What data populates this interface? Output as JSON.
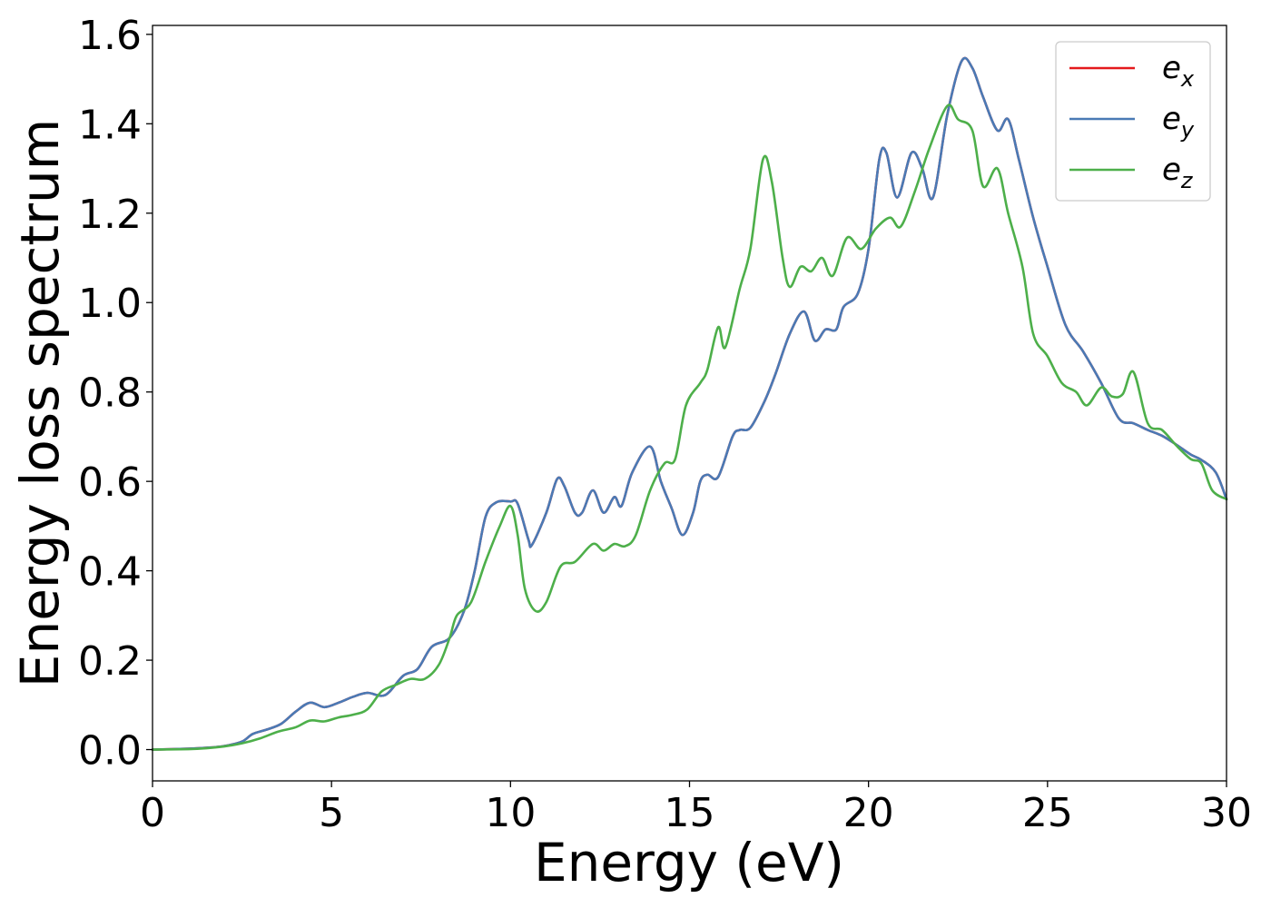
{
  "chart_data": {
    "type": "line",
    "title": "",
    "xlabel": "Energy (eV)",
    "ylabel": "Energy loss spectrum",
    "xlim": [
      0,
      30
    ],
    "ylim": [
      -0.07,
      1.62
    ],
    "x_ticks": [
      0,
      5,
      10,
      15,
      20,
      25,
      30
    ],
    "y_ticks": [
      0.0,
      0.2,
      0.4,
      0.6,
      0.8,
      1.0,
      1.2,
      1.4,
      1.6
    ],
    "x_tick_labels": [
      "0",
      "5",
      "10",
      "15",
      "20",
      "25",
      "30"
    ],
    "y_tick_labels": [
      "0.0",
      "0.2",
      "0.4",
      "0.6",
      "0.8",
      "1.0",
      "1.2",
      "1.4",
      "1.6"
    ],
    "grid": false,
    "legend_position": "top-right",
    "series": [
      {
        "name": "e_x",
        "base": "e",
        "sub": "x",
        "color": "#e41a1c",
        "points": [
          [
            0,
            0
          ],
          [
            1,
            0.002
          ],
          [
            1.5,
            0.004
          ],
          [
            2,
            0.008
          ],
          [
            2.5,
            0.018
          ],
          [
            2.8,
            0.035
          ],
          [
            3.2,
            0.045
          ],
          [
            3.6,
            0.058
          ],
          [
            4,
            0.085
          ],
          [
            4.4,
            0.105
          ],
          [
            4.8,
            0.095
          ],
          [
            5.2,
            0.105
          ],
          [
            5.6,
            0.118
          ],
          [
            6,
            0.127
          ],
          [
            6.5,
            0.122
          ],
          [
            7,
            0.165
          ],
          [
            7.4,
            0.18
          ],
          [
            7.8,
            0.23
          ],
          [
            8.3,
            0.25
          ],
          [
            8.7,
            0.31
          ],
          [
            9,
            0.4
          ],
          [
            9.3,
            0.52
          ],
          [
            9.6,
            0.553
          ],
          [
            10,
            0.555
          ],
          [
            10.2,
            0.55
          ],
          [
            10.5,
            0.47
          ],
          [
            10.6,
            0.458
          ],
          [
            11,
            0.53
          ],
          [
            11.3,
            0.605
          ],
          [
            11.5,
            0.59
          ],
          [
            11.8,
            0.53
          ],
          [
            12,
            0.53
          ],
          [
            12.3,
            0.58
          ],
          [
            12.6,
            0.53
          ],
          [
            12.9,
            0.565
          ],
          [
            13.1,
            0.545
          ],
          [
            13.4,
            0.62
          ],
          [
            13.9,
            0.678
          ],
          [
            14.2,
            0.6
          ],
          [
            14.5,
            0.54
          ],
          [
            14.8,
            0.48
          ],
          [
            15.1,
            0.53
          ],
          [
            15.3,
            0.6
          ],
          [
            15.5,
            0.615
          ],
          [
            15.8,
            0.61
          ],
          [
            16.2,
            0.7
          ],
          [
            16.4,
            0.715
          ],
          [
            16.7,
            0.72
          ],
          [
            17.1,
            0.78
          ],
          [
            17.4,
            0.84
          ],
          [
            17.8,
            0.93
          ],
          [
            18.2,
            0.98
          ],
          [
            18.5,
            0.915
          ],
          [
            18.8,
            0.94
          ],
          [
            19.1,
            0.94
          ],
          [
            19.3,
            0.99
          ],
          [
            19.7,
            1.02
          ],
          [
            20,
            1.12
          ],
          [
            20.3,
            1.32
          ],
          [
            20.5,
            1.335
          ],
          [
            20.8,
            1.235
          ],
          [
            21.2,
            1.335
          ],
          [
            21.5,
            1.3
          ],
          [
            21.8,
            1.235
          ],
          [
            22.2,
            1.42
          ],
          [
            22.6,
            1.54
          ],
          [
            22.9,
            1.525
          ],
          [
            23.2,
            1.46
          ],
          [
            23.6,
            1.385
          ],
          [
            23.9,
            1.41
          ],
          [
            24.2,
            1.32
          ],
          [
            24.6,
            1.19
          ],
          [
            25,
            1.08
          ],
          [
            25.5,
            0.95
          ],
          [
            26,
            0.89
          ],
          [
            26.5,
            0.82
          ],
          [
            27,
            0.74
          ],
          [
            27.4,
            0.73
          ],
          [
            27.8,
            0.715
          ],
          [
            28.2,
            0.702
          ],
          [
            28.6,
            0.682
          ],
          [
            29,
            0.66
          ],
          [
            29.3,
            0.648
          ],
          [
            29.7,
            0.62
          ],
          [
            30,
            0.56
          ]
        ]
      },
      {
        "name": "e_y",
        "base": "e",
        "sub": "y",
        "color": "#4a7ab5",
        "points": [
          [
            0,
            0
          ],
          [
            1,
            0.002
          ],
          [
            1.5,
            0.004
          ],
          [
            2,
            0.008
          ],
          [
            2.5,
            0.018
          ],
          [
            2.8,
            0.035
          ],
          [
            3.2,
            0.045
          ],
          [
            3.6,
            0.058
          ],
          [
            4,
            0.085
          ],
          [
            4.4,
            0.105
          ],
          [
            4.8,
            0.095
          ],
          [
            5.2,
            0.105
          ],
          [
            5.6,
            0.118
          ],
          [
            6,
            0.127
          ],
          [
            6.5,
            0.122
          ],
          [
            7,
            0.165
          ],
          [
            7.4,
            0.18
          ],
          [
            7.8,
            0.23
          ],
          [
            8.3,
            0.25
          ],
          [
            8.7,
            0.31
          ],
          [
            9,
            0.4
          ],
          [
            9.3,
            0.52
          ],
          [
            9.6,
            0.553
          ],
          [
            10,
            0.555
          ],
          [
            10.2,
            0.55
          ],
          [
            10.5,
            0.47
          ],
          [
            10.6,
            0.458
          ],
          [
            11,
            0.53
          ],
          [
            11.3,
            0.605
          ],
          [
            11.5,
            0.59
          ],
          [
            11.8,
            0.53
          ],
          [
            12,
            0.53
          ],
          [
            12.3,
            0.58
          ],
          [
            12.6,
            0.53
          ],
          [
            12.9,
            0.565
          ],
          [
            13.1,
            0.545
          ],
          [
            13.4,
            0.62
          ],
          [
            13.9,
            0.678
          ],
          [
            14.2,
            0.6
          ],
          [
            14.5,
            0.54
          ],
          [
            14.8,
            0.48
          ],
          [
            15.1,
            0.53
          ],
          [
            15.3,
            0.6
          ],
          [
            15.5,
            0.615
          ],
          [
            15.8,
            0.61
          ],
          [
            16.2,
            0.7
          ],
          [
            16.4,
            0.715
          ],
          [
            16.7,
            0.72
          ],
          [
            17.1,
            0.78
          ],
          [
            17.4,
            0.84
          ],
          [
            17.8,
            0.93
          ],
          [
            18.2,
            0.98
          ],
          [
            18.5,
            0.915
          ],
          [
            18.8,
            0.94
          ],
          [
            19.1,
            0.94
          ],
          [
            19.3,
            0.99
          ],
          [
            19.7,
            1.02
          ],
          [
            20,
            1.12
          ],
          [
            20.3,
            1.32
          ],
          [
            20.5,
            1.335
          ],
          [
            20.8,
            1.235
          ],
          [
            21.2,
            1.335
          ],
          [
            21.5,
            1.3
          ],
          [
            21.8,
            1.235
          ],
          [
            22.2,
            1.42
          ],
          [
            22.6,
            1.54
          ],
          [
            22.9,
            1.525
          ],
          [
            23.2,
            1.46
          ],
          [
            23.6,
            1.385
          ],
          [
            23.9,
            1.41
          ],
          [
            24.2,
            1.32
          ],
          [
            24.6,
            1.19
          ],
          [
            25,
            1.08
          ],
          [
            25.5,
            0.95
          ],
          [
            26,
            0.89
          ],
          [
            26.5,
            0.82
          ],
          [
            27,
            0.74
          ],
          [
            27.4,
            0.73
          ],
          [
            27.8,
            0.715
          ],
          [
            28.2,
            0.702
          ],
          [
            28.6,
            0.682
          ],
          [
            29,
            0.66
          ],
          [
            29.3,
            0.648
          ],
          [
            29.7,
            0.62
          ],
          [
            30,
            0.56
          ]
        ]
      },
      {
        "name": "e_z",
        "base": "e",
        "sub": "z",
        "color": "#4daf4a",
        "points": [
          [
            0,
            0
          ],
          [
            1,
            0.001
          ],
          [
            1.5,
            0.003
          ],
          [
            2,
            0.007
          ],
          [
            2.5,
            0.014
          ],
          [
            3,
            0.025
          ],
          [
            3.5,
            0.04
          ],
          [
            4,
            0.05
          ],
          [
            4.4,
            0.065
          ],
          [
            4.8,
            0.063
          ],
          [
            5.2,
            0.072
          ],
          [
            5.6,
            0.078
          ],
          [
            6,
            0.09
          ],
          [
            6.4,
            0.13
          ],
          [
            6.8,
            0.145
          ],
          [
            7.2,
            0.158
          ],
          [
            7.6,
            0.158
          ],
          [
            8,
            0.19
          ],
          [
            8.3,
            0.25
          ],
          [
            8.5,
            0.3
          ],
          [
            8.9,
            0.33
          ],
          [
            9.3,
            0.42
          ],
          [
            9.7,
            0.5
          ],
          [
            10,
            0.545
          ],
          [
            10.2,
            0.48
          ],
          [
            10.4,
            0.36
          ],
          [
            10.7,
            0.31
          ],
          [
            11,
            0.33
          ],
          [
            11.4,
            0.41
          ],
          [
            11.8,
            0.42
          ],
          [
            12.3,
            0.46
          ],
          [
            12.6,
            0.445
          ],
          [
            12.9,
            0.46
          ],
          [
            13.2,
            0.455
          ],
          [
            13.5,
            0.48
          ],
          [
            13.9,
            0.58
          ],
          [
            14.3,
            0.64
          ],
          [
            14.6,
            0.65
          ],
          [
            14.9,
            0.77
          ],
          [
            15.3,
            0.82
          ],
          [
            15.5,
            0.85
          ],
          [
            15.8,
            0.945
          ],
          [
            16,
            0.9
          ],
          [
            16.4,
            1.03
          ],
          [
            16.7,
            1.12
          ],
          [
            17.05,
            1.32
          ],
          [
            17.3,
            1.27
          ],
          [
            17.6,
            1.1
          ],
          [
            17.8,
            1.035
          ],
          [
            18.1,
            1.08
          ],
          [
            18.4,
            1.07
          ],
          [
            18.7,
            1.1
          ],
          [
            19,
            1.06
          ],
          [
            19.4,
            1.145
          ],
          [
            19.8,
            1.12
          ],
          [
            20.2,
            1.165
          ],
          [
            20.6,
            1.19
          ],
          [
            20.9,
            1.17
          ],
          [
            21.3,
            1.25
          ],
          [
            21.7,
            1.345
          ],
          [
            22.2,
            1.44
          ],
          [
            22.5,
            1.41
          ],
          [
            22.9,
            1.385
          ],
          [
            23.2,
            1.26
          ],
          [
            23.6,
            1.3
          ],
          [
            23.9,
            1.2
          ],
          [
            24.3,
            1.08
          ],
          [
            24.6,
            0.93
          ],
          [
            25,
            0.88
          ],
          [
            25.4,
            0.82
          ],
          [
            25.8,
            0.8
          ],
          [
            26.1,
            0.77
          ],
          [
            26.5,
            0.81
          ],
          [
            26.8,
            0.79
          ],
          [
            27.1,
            0.795
          ],
          [
            27.4,
            0.845
          ],
          [
            27.8,
            0.73
          ],
          [
            28.2,
            0.715
          ],
          [
            28.6,
            0.68
          ],
          [
            29,
            0.65
          ],
          [
            29.3,
            0.64
          ],
          [
            29.6,
            0.58
          ],
          [
            30,
            0.56
          ]
        ]
      }
    ]
  }
}
